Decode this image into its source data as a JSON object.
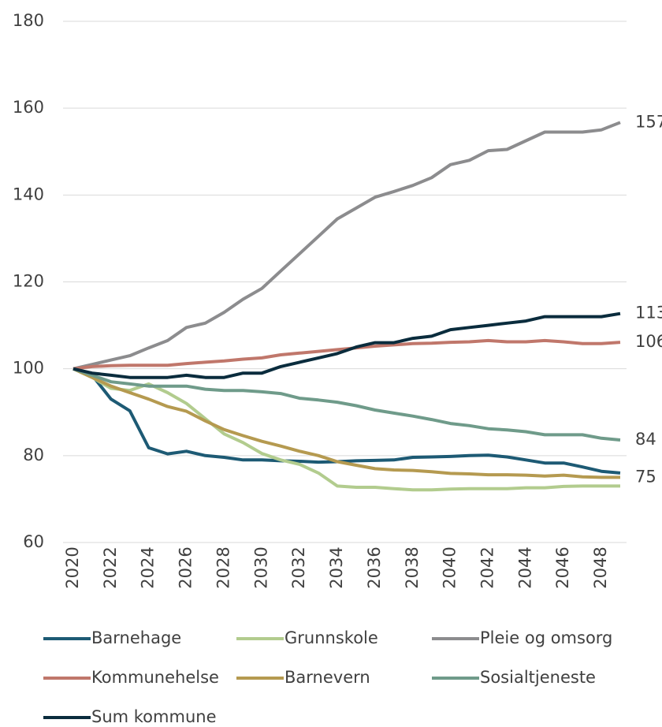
{
  "chart_data": {
    "type": "line",
    "x": [
      2020,
      2021,
      2022,
      2023,
      2024,
      2025,
      2026,
      2027,
      2028,
      2029,
      2030,
      2031,
      2032,
      2033,
      2034,
      2035,
      2036,
      2037,
      2038,
      2039,
      2040,
      2041,
      2042,
      2043,
      2044,
      2045,
      2046,
      2047,
      2048,
      2049
    ],
    "xlim": [
      2020,
      2049
    ],
    "xticks": [
      2020,
      2022,
      2024,
      2026,
      2028,
      2030,
      2032,
      2034,
      2036,
      2038,
      2040,
      2042,
      2044,
      2046,
      2048
    ],
    "ylim": [
      60,
      180
    ],
    "yticks": [
      60,
      80,
      100,
      120,
      140,
      160,
      180
    ],
    "grid": true,
    "legend": "bottom",
    "series": [
      {
        "name": "Barnehage",
        "color": "#1d5a74",
        "values": [
          100,
          98.5,
          93,
          90.3,
          81.8,
          80.4,
          81,
          80,
          79.6,
          79,
          79,
          78.8,
          78.7,
          78.5,
          78.6,
          78.8,
          78.9,
          79,
          79.6,
          79.7,
          79.8,
          80,
          80.1,
          79.7,
          79,
          78.3,
          78.3,
          77.4,
          76.4,
          76
        ]
      },
      {
        "name": "Grunnskole",
        "color": "#b2cc8e",
        "values": [
          100,
          98,
          95.5,
          95,
          96.5,
          94.5,
          92,
          88.5,
          85,
          83,
          80.5,
          79,
          78,
          76,
          73,
          72.7,
          72.7,
          72.4,
          72.1,
          72.1,
          72.3,
          72.4,
          72.4,
          72.4,
          72.6,
          72.6,
          72.9,
          73,
          73,
          73
        ]
      },
      {
        "name": "Pleie og omsorg",
        "color": "#8c8c8e",
        "end_label": "157",
        "values": [
          100,
          101,
          102,
          103,
          104.8,
          106.5,
          109.5,
          110.5,
          113,
          116,
          118.5,
          122.5,
          126.5,
          130.5,
          134.5,
          137,
          139.5,
          140.8,
          142.2,
          144,
          147,
          148,
          150.2,
          150.5,
          152.5,
          154.5,
          154.5,
          154.5,
          155,
          156.7
        ]
      },
      {
        "name": "Kommunehelse",
        "color": "#c0776b",
        "end_label": "106",
        "values": [
          100,
          100.5,
          100.7,
          100.8,
          100.8,
          100.8,
          101.2,
          101.5,
          101.8,
          102.2,
          102.5,
          103.2,
          103.6,
          104,
          104.4,
          104.8,
          105.2,
          105.5,
          105.8,
          105.9,
          106.1,
          106.2,
          106.5,
          106.2,
          106.2,
          106.5,
          106.2,
          105.8,
          105.8,
          106.1
        ]
      },
      {
        "name": "Barnevern",
        "color": "#b59a50",
        "end_label": "75",
        "values": [
          100,
          98,
          96,
          94.5,
          93,
          91.3,
          90.2,
          88,
          86,
          84.6,
          83.3,
          82.2,
          81,
          80,
          78.6,
          77.8,
          77,
          76.7,
          76.6,
          76.3,
          75.9,
          75.8,
          75.6,
          75.6,
          75.5,
          75.3,
          75.5,
          75.1,
          75,
          75
        ]
      },
      {
        "name": "Sosialtjeneste",
        "color": "#6f9b8a",
        "end_label": "84",
        "values": [
          100,
          98.5,
          97,
          96.5,
          96,
          96,
          96,
          95.3,
          95,
          95,
          94.7,
          94.3,
          93.2,
          92.8,
          92.3,
          91.5,
          90.5,
          89.8,
          89.1,
          88.3,
          87.4,
          86.9,
          86.2,
          85.9,
          85.5,
          84.8,
          84.8,
          84.8,
          84,
          83.6
        ]
      },
      {
        "name": "Sum kommune",
        "color": "#0a2c3d",
        "end_label": "113",
        "values": [
          100,
          99,
          98.5,
          98,
          98,
          98,
          98.5,
          98,
          98,
          99,
          99,
          100.5,
          101.5,
          102.5,
          103.5,
          105,
          106,
          106,
          107,
          107.5,
          109,
          109.5,
          110,
          110.5,
          111,
          112,
          112,
          112,
          112,
          112.7
        ]
      }
    ]
  }
}
